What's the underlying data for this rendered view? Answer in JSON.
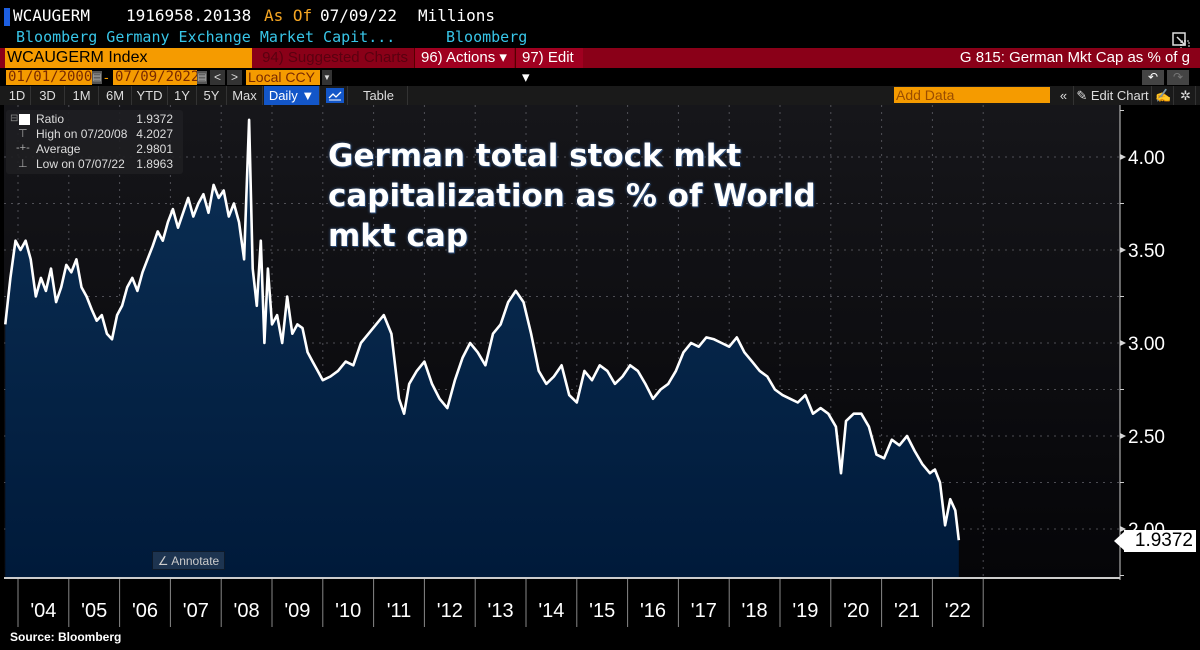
{
  "header": {
    "ticker": "WCAUGERM",
    "last_value": "1916958.20138",
    "as_of_label": "As Of",
    "as_of_date": "07/09/22",
    "units": "Millions",
    "description": "Bloomberg Germany Exchange Market Capit...",
    "source_name": "Bloomberg"
  },
  "command_bar": {
    "security": "WCAUGERM Index",
    "suggested_charts": "94) Suggested Charts",
    "actions": "96) Actions ▾",
    "edit": "97) Edit ▾",
    "chart_title": "G 815: German Mkt Cap as % of g"
  },
  "date_range": {
    "start": "01/01/2000",
    "separator": "-",
    "end": "07/09/2022",
    "currency": "Local CCY"
  },
  "toolbar": {
    "periods": [
      "1D",
      "3D",
      "1M",
      "6M",
      "YTD",
      "1Y",
      "5Y",
      "Max"
    ],
    "frequency": "Daily ▼",
    "table_label": "Table",
    "add_data_placeholder": "Add Data",
    "collapse": "«",
    "edit_chart": "Edit Chart"
  },
  "legend": {
    "rows": [
      {
        "label": "Ratio",
        "value": "1.9372"
      },
      {
        "label": "High on 07/20/08",
        "value": "4.2027"
      },
      {
        "label": "Average",
        "value": "2.9801"
      },
      {
        "label": "Low on 07/07/22",
        "value": "1.8963"
      }
    ]
  },
  "annotate_label": "Annotate",
  "source_label": "Source:  Bloomberg",
  "colors": {
    "line": "#ffffff",
    "area_top": "#0b2f55",
    "area_bottom": "#001a3a",
    "plot_bg": "#0e0e12",
    "accent_orange": "#f59b00",
    "accent_red": "#8a0018"
  },
  "chart_data": {
    "type": "area",
    "title": "German total stock mkt capitalization as % of World mkt cap",
    "xlabel": "",
    "ylabel": "Ratio",
    "ylim": [
      1.85,
      4.25
    ],
    "yticks": [
      2.0,
      2.5,
      3.0,
      3.5,
      4.0
    ],
    "ytick_labels": [
      "2.00",
      "2.50",
      "3.00",
      "3.50",
      "4.00"
    ],
    "xlim": [
      2003.75,
      2022.55
    ],
    "xticks": [
      2004,
      2005,
      2006,
      2007,
      2008,
      2009,
      2010,
      2011,
      2012,
      2013,
      2014,
      2015,
      2016,
      2017,
      2018,
      2019,
      2020,
      2021,
      2022
    ],
    "xtick_labels": [
      "'04",
      "'05",
      "'06",
      "'07",
      "'08",
      "'09",
      "'10",
      "'11",
      "'12",
      "'13",
      "'14",
      "'15",
      "'16",
      "'17",
      "'18",
      "'19",
      "'20",
      "'21",
      "'22"
    ],
    "grid": true,
    "last_value_label": "1.9372",
    "series": [
      {
        "name": "Ratio",
        "x": [
          2003.75,
          2003.85,
          2003.95,
          2004.05,
          2004.15,
          2004.25,
          2004.35,
          2004.45,
          2004.55,
          2004.65,
          2004.75,
          2004.85,
          2004.95,
          2005.05,
          2005.15,
          2005.25,
          2005.35,
          2005.45,
          2005.55,
          2005.65,
          2005.75,
          2005.85,
          2005.95,
          2006.05,
          2006.15,
          2006.25,
          2006.35,
          2006.45,
          2006.55,
          2006.65,
          2006.75,
          2006.85,
          2006.95,
          2007.05,
          2007.15,
          2007.25,
          2007.35,
          2007.45,
          2007.55,
          2007.65,
          2007.75,
          2007.85,
          2007.95,
          2008.05,
          2008.15,
          2008.25,
          2008.35,
          2008.45,
          2008.55,
          2008.62,
          2008.7,
          2008.78,
          2008.85,
          2008.92,
          2009.0,
          2009.1,
          2009.2,
          2009.3,
          2009.4,
          2009.5,
          2009.6,
          2009.7,
          2009.8,
          2009.9,
          2010.0,
          2010.15,
          2010.3,
          2010.45,
          2010.6,
          2010.75,
          2010.9,
          2011.05,
          2011.2,
          2011.35,
          2011.5,
          2011.6,
          2011.7,
          2011.85,
          2012.0,
          2012.15,
          2012.3,
          2012.45,
          2012.6,
          2012.75,
          2012.9,
          2013.05,
          2013.2,
          2013.35,
          2013.5,
          2013.65,
          2013.8,
          2013.95,
          2014.1,
          2014.25,
          2014.4,
          2014.55,
          2014.7,
          2014.85,
          2015.0,
          2015.15,
          2015.3,
          2015.45,
          2015.6,
          2015.75,
          2015.9,
          2016.05,
          2016.2,
          2016.35,
          2016.5,
          2016.65,
          2016.8,
          2016.95,
          2017.1,
          2017.25,
          2017.4,
          2017.55,
          2017.7,
          2017.85,
          2018.0,
          2018.15,
          2018.3,
          2018.45,
          2018.6,
          2018.75,
          2018.9,
          2019.05,
          2019.2,
          2019.35,
          2019.5,
          2019.65,
          2019.8,
          2019.95,
          2020.1,
          2020.2,
          2020.3,
          2020.45,
          2020.6,
          2020.75,
          2020.9,
          2021.05,
          2021.2,
          2021.35,
          2021.5,
          2021.65,
          2021.8,
          2021.95,
          2022.05,
          2022.15,
          2022.25,
          2022.35,
          2022.45,
          2022.52
        ],
        "y": [
          3.1,
          3.35,
          3.55,
          3.5,
          3.55,
          3.45,
          3.25,
          3.35,
          3.28,
          3.4,
          3.22,
          3.3,
          3.42,
          3.38,
          3.45,
          3.3,
          3.25,
          3.18,
          3.12,
          3.15,
          3.05,
          3.02,
          3.15,
          3.2,
          3.3,
          3.35,
          3.28,
          3.38,
          3.45,
          3.52,
          3.6,
          3.55,
          3.65,
          3.72,
          3.62,
          3.7,
          3.78,
          3.68,
          3.75,
          3.8,
          3.7,
          3.85,
          3.78,
          3.82,
          3.68,
          3.75,
          3.65,
          3.45,
          4.2,
          3.4,
          3.2,
          3.55,
          3.0,
          3.4,
          3.1,
          3.15,
          3.0,
          3.25,
          3.05,
          3.1,
          3.08,
          2.95,
          2.9,
          2.85,
          2.8,
          2.82,
          2.85,
          2.9,
          2.88,
          3.0,
          3.05,
          3.1,
          3.15,
          3.05,
          2.7,
          2.62,
          2.78,
          2.85,
          2.9,
          2.78,
          2.7,
          2.65,
          2.8,
          2.92,
          3.0,
          2.95,
          2.88,
          3.05,
          3.1,
          3.22,
          3.28,
          3.22,
          3.05,
          2.85,
          2.78,
          2.82,
          2.88,
          2.72,
          2.68,
          2.85,
          2.8,
          2.88,
          2.85,
          2.78,
          2.82,
          2.88,
          2.85,
          2.78,
          2.7,
          2.75,
          2.78,
          2.85,
          2.95,
          3.0,
          2.98,
          3.03,
          3.02,
          3.0,
          2.98,
          3.03,
          2.95,
          2.9,
          2.85,
          2.82,
          2.75,
          2.72,
          2.7,
          2.68,
          2.72,
          2.62,
          2.65,
          2.62,
          2.55,
          2.3,
          2.58,
          2.62,
          2.62,
          2.55,
          2.4,
          2.38,
          2.48,
          2.45,
          2.5,
          2.42,
          2.35,
          2.3,
          2.32,
          2.25,
          2.02,
          2.16,
          2.1,
          1.94
        ]
      }
    ]
  }
}
